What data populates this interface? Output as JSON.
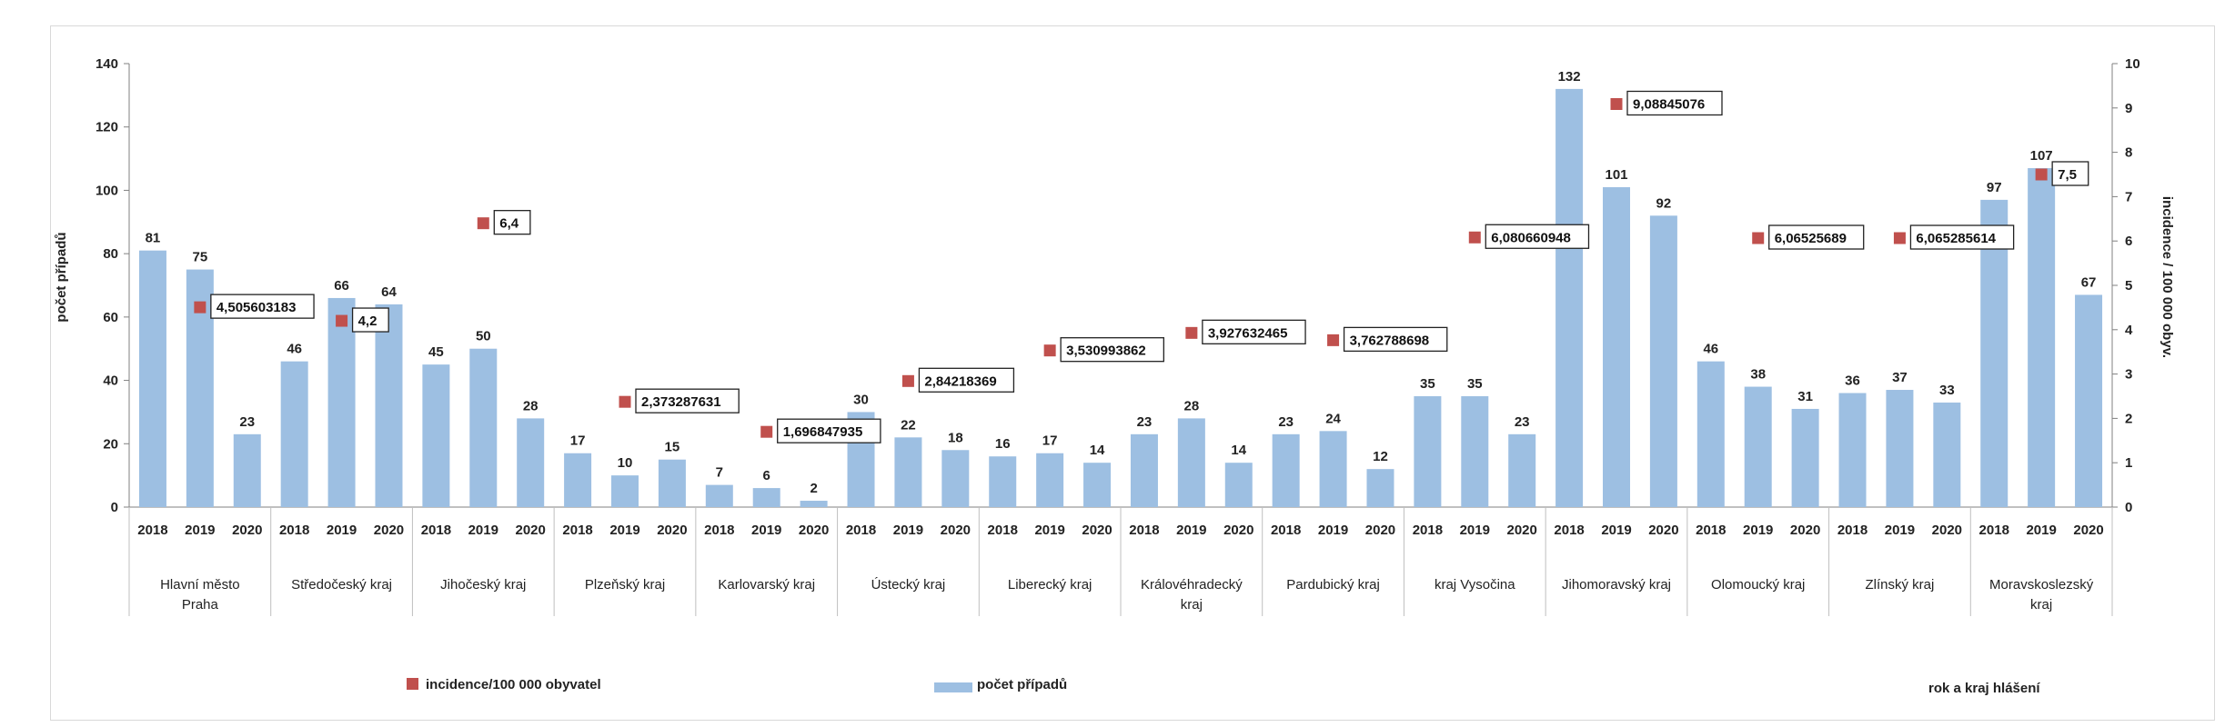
{
  "chart_data": {
    "type": "bar",
    "ylabel": "počet případů",
    "y2label": "incidence / 100 000 obyv.",
    "ylim": [
      0,
      140
    ],
    "y2lim": [
      0,
      10
    ],
    "y_ticks": [
      "0",
      "20",
      "40",
      "60",
      "80",
      "100",
      "120",
      "140"
    ],
    "y2_ticks": [
      "0",
      "1",
      "2",
      "3",
      "4",
      "5",
      "6",
      "7",
      "8",
      "9",
      "10"
    ],
    "years": [
      "2018",
      "2019",
      "2020"
    ],
    "regions": [
      {
        "name": "Hlavní město Praha",
        "lines": [
          "Hlavní město",
          "Praha"
        ],
        "values": [
          81,
          75,
          23
        ],
        "incidence": 4.505603183,
        "incidence_label": "4,505603183"
      },
      {
        "name": "Středočeský kraj",
        "lines": [
          "Středočeský kraj"
        ],
        "values": [
          46,
          66,
          64
        ],
        "incidence": 4.2,
        "incidence_label": "4,2"
      },
      {
        "name": "Jihočeský kraj",
        "lines": [
          "Jihočeský kraj"
        ],
        "values": [
          45,
          50,
          28
        ],
        "incidence": 6.4,
        "incidence_label": "6,4"
      },
      {
        "name": "Plzeňský kraj",
        "lines": [
          "Plzeňský kraj"
        ],
        "values": [
          17,
          10,
          15
        ],
        "incidence": 2.373287631,
        "incidence_label": "2,373287631"
      },
      {
        "name": "Karlovarský kraj",
        "lines": [
          "Karlovarský kraj"
        ],
        "values": [
          7,
          6,
          2
        ],
        "incidence": 1.696847935,
        "incidence_label": "1,696847935"
      },
      {
        "name": "Ústecký kraj",
        "lines": [
          "Ústecký kraj"
        ],
        "values": [
          30,
          22,
          18
        ],
        "incidence": 2.84218369,
        "incidence_label": "2,84218369"
      },
      {
        "name": "Liberecký kraj",
        "lines": [
          "Liberecký kraj"
        ],
        "values": [
          16,
          17,
          14
        ],
        "incidence": 3.530993862,
        "incidence_label": "3,530993862"
      },
      {
        "name": "Královéhradecký kraj",
        "lines": [
          "Královéhradecký",
          "kraj"
        ],
        "values": [
          23,
          28,
          14
        ],
        "incidence": 3.927632465,
        "incidence_label": "3,927632465"
      },
      {
        "name": "Pardubický kraj",
        "lines": [
          "Pardubický kraj"
        ],
        "values": [
          23,
          24,
          12
        ],
        "incidence": 3.762788698,
        "incidence_label": "3,762788698"
      },
      {
        "name": "kraj Vysočina",
        "lines": [
          "kraj Vysočina"
        ],
        "values": [
          35,
          35,
          23
        ],
        "incidence": 6.080660948,
        "incidence_label": "6,080660948"
      },
      {
        "name": "Jihomoravský kraj",
        "lines": [
          "Jihomoravský kraj"
        ],
        "values": [
          132,
          101,
          92
        ],
        "incidence": 9.08845076,
        "incidence_label": "9,08845076"
      },
      {
        "name": "Olomoucký kraj",
        "lines": [
          "Olomoucký kraj"
        ],
        "values": [
          46,
          38,
          31
        ],
        "incidence": 6.06525689,
        "incidence_label": "6,06525689"
      },
      {
        "name": "Zlínský kraj",
        "lines": [
          "Zlínský kraj"
        ],
        "values": [
          36,
          37,
          33
        ],
        "incidence": 6.065285614,
        "incidence_label": "6,065285614"
      },
      {
        "name": "Moravskoslezský kraj",
        "lines": [
          "Moravskoslezský",
          "kraj"
        ],
        "values": [
          97,
          107,
          67
        ],
        "incidence": 7.5,
        "incidence_label": "7,5"
      }
    ],
    "legend": {
      "incidence": "incidence/100 000 obyvatel",
      "bars": "počet případů",
      "xaxis": "rok a kraj hlášení"
    },
    "colors": {
      "bar": "#9dbfe2",
      "marker": "#c0504d",
      "axis": "#808080"
    },
    "grid": false,
    "legend_position": "bottom"
  }
}
